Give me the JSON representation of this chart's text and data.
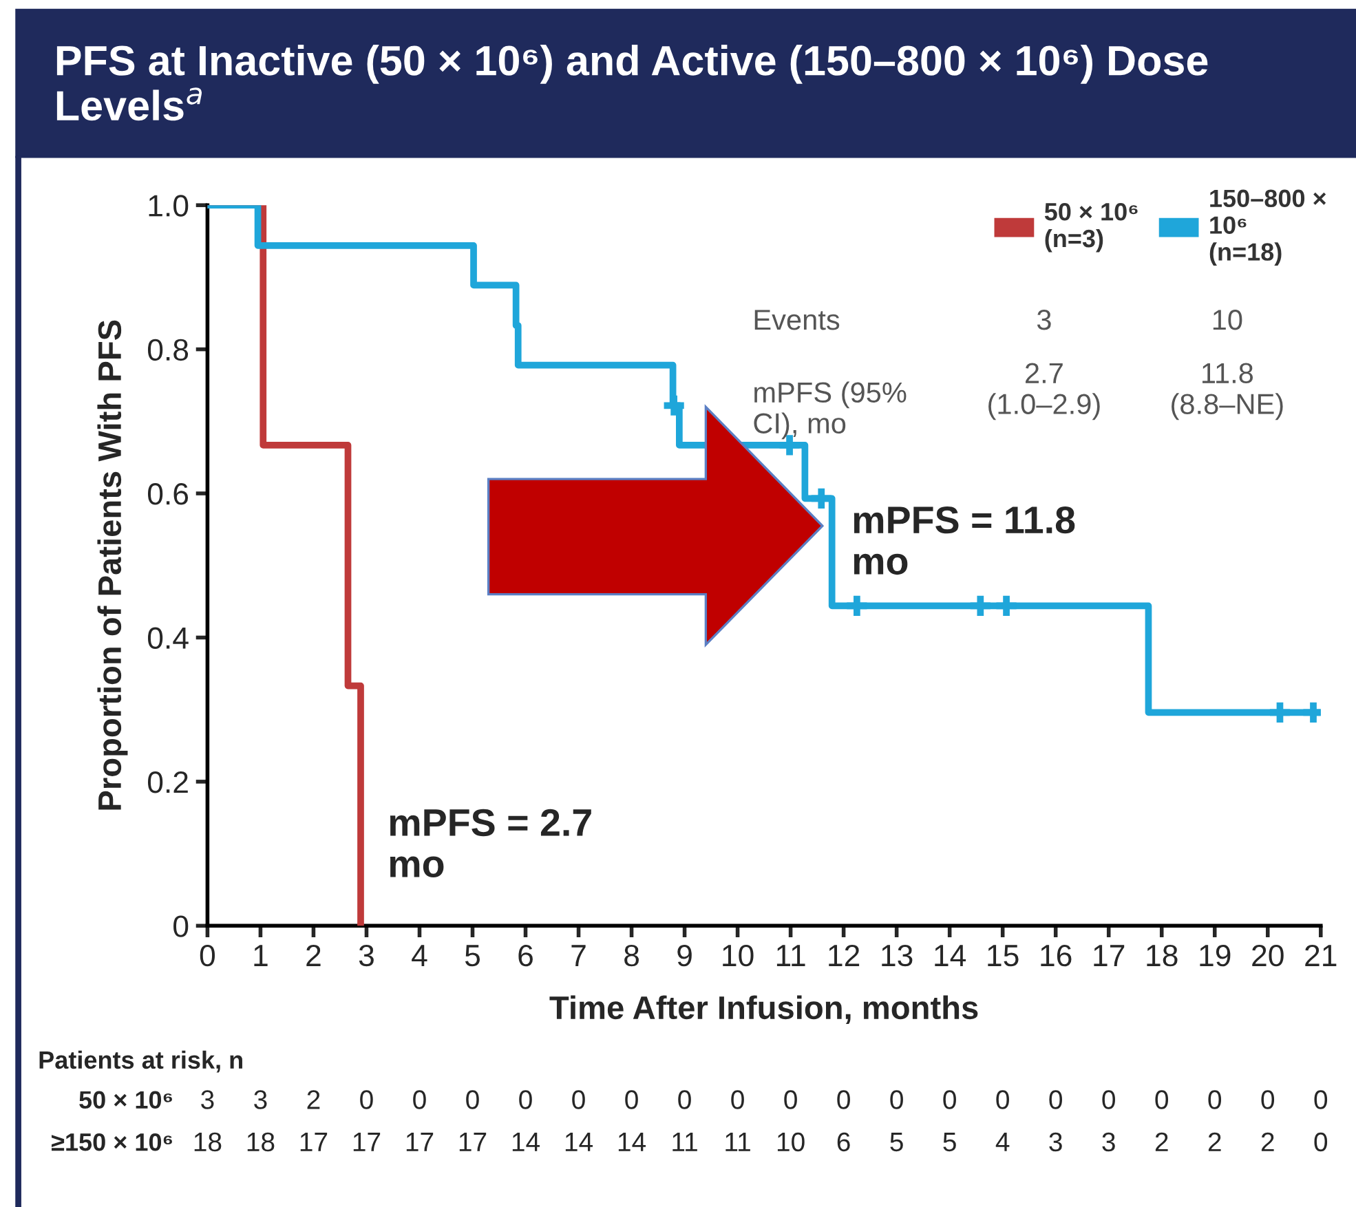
{
  "chart_data": {
    "type": "step",
    "title": "PFS at Inactive (50 × 10⁶) and Active (150–800 × 10⁶) Dose Levels$^{a}$",
    "xlabel": "Time After Infusion, months",
    "ylabel": "Proportion of Patients With PFS",
    "series": [
      {
        "name": "50 × 10⁶\n(n=3)",
        "color": "#bf3a3a",
        "x": [
          0,
          1.05,
          2.65,
          2.89
        ],
        "values": [
          1.0,
          0.667,
          0.333,
          0
        ]
      },
      {
        "name": "150–800 ×\n10⁶\n(n=18)",
        "color": "#1fa6da",
        "x": [
          0,
          0.95,
          5.02,
          5.82,
          5.86,
          8.78,
          8.9,
          11.27,
          11.78,
          17.75,
          21.0
        ],
        "values": [
          1.0,
          0.944,
          0.889,
          0.833,
          0.778,
          0.722,
          0.667,
          0.593,
          0.444,
          0.296,
          0.296
        ]
      },
      {
        "type": "scatter",
        "color": "#1fa6da",
        "marker": "cross",
        "x": [
          8.8,
          10.98,
          11.58,
          12.25,
          14.58,
          15.07,
          20.23,
          20.86
        ],
        "values": [
          0.722,
          0.667,
          0.593,
          0.444,
          0.444,
          0.444,
          0.296,
          0.296
        ]
      }
    ],
    "xlim": [
      0,
      21
    ],
    "xticks": [
      0,
      1,
      2,
      3,
      4,
      5,
      6,
      7,
      8,
      9,
      10,
      11,
      12,
      13,
      14,
      15,
      16,
      17,
      18,
      19,
      20,
      21
    ],
    "ylim": [
      0,
      1.0
    ],
    "yticks": [
      0,
      0.2,
      0.4,
      0.6,
      0.8,
      {
        "value": 1,
        "label": "1.0"
      }
    ],
    "legend": "top right",
    "grid": false,
    "annotations": [
      "Events",
      "3",
      "10",
      "mPFS (95%\nCI), mo",
      "2.7\n(1.0–2.9)",
      "11.8\n(8.8–NE)",
      "mPFS = 11.8\nmo",
      "mPFS = 2.7\nmo",
      "Patients at risk, n",
      "50 × 10⁶",
      "≥150 × 10⁶",
      "3",
      "3",
      "2",
      "0",
      "0",
      "0",
      "0",
      "0",
      "0",
      "0",
      "0",
      "0",
      "0",
      "0",
      "0",
      "0",
      "0",
      "0",
      "0",
      "0",
      "0",
      "0",
      "18",
      "18",
      "17",
      "17",
      "17",
      "17",
      "14",
      "14",
      "14",
      "11",
      "11",
      "10",
      "6",
      "5",
      "5",
      "4",
      "3",
      "3",
      "2",
      "2",
      "2",
      "0"
    ]
  }
}
